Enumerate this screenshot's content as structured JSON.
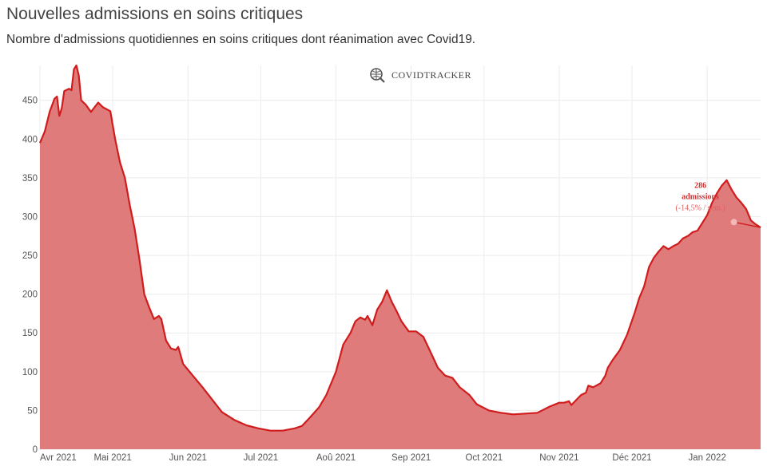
{
  "header": {
    "title": "Nouvelles admissions en soins critiques",
    "subtitle": "Nombre d'admissions quotidiennes en soins critiques dont réanimation avec Covid19."
  },
  "watermark": {
    "text": "COVIDTRACKER",
    "icon": "covidtracker-logo-icon"
  },
  "colors": {
    "line": "#d01c1c",
    "fill": "#e07b7b",
    "grid": "#ececec",
    "marker": "#f2b9b9"
  },
  "chart_data": {
    "type": "area",
    "title": "Nouvelles admissions en soins critiques",
    "subtitle": "Nombre d'admissions quotidiennes en soins critiques dont réanimation avec Covid19.",
    "xlabel": "",
    "ylabel": "",
    "xlim": [
      "2021-04-01",
      "2022-01-23"
    ],
    "ylim": [
      0,
      495
    ],
    "grid": true,
    "legend": "none",
    "y_ticks": [
      0,
      50,
      100,
      150,
      200,
      250,
      300,
      350,
      400,
      450
    ],
    "x_ticks": [
      {
        "date": "2021-04-01",
        "label": "Avr 2021"
      },
      {
        "date": "2021-05-01",
        "label": "Mai 2021"
      },
      {
        "date": "2021-06-01",
        "label": "Jun 2021"
      },
      {
        "date": "2021-07-01",
        "label": "Jul 2021"
      },
      {
        "date": "2021-08-01",
        "label": "Aoû 2021"
      },
      {
        "date": "2021-09-01",
        "label": "Sep 2021"
      },
      {
        "date": "2021-10-01",
        "label": "Oct 2021"
      },
      {
        "date": "2021-11-01",
        "label": "Nov 2021"
      },
      {
        "date": "2021-12-01",
        "label": "Déc 2021"
      },
      {
        "date": "2022-01-01",
        "label": "Jan 2022"
      }
    ],
    "series": [
      {
        "points": [
          [
            "2021-04-01",
            395
          ],
          [
            "2021-04-03",
            410
          ],
          [
            "2021-04-05",
            435
          ],
          [
            "2021-04-07",
            452
          ],
          [
            "2021-04-08",
            455
          ],
          [
            "2021-04-09",
            430
          ],
          [
            "2021-04-10",
            440
          ],
          [
            "2021-04-11",
            462
          ],
          [
            "2021-04-13",
            465
          ],
          [
            "2021-04-14",
            463
          ],
          [
            "2021-04-15",
            490
          ],
          [
            "2021-04-16",
            495
          ],
          [
            "2021-04-17",
            482
          ],
          [
            "2021-04-18",
            450
          ],
          [
            "2021-04-20",
            444
          ],
          [
            "2021-04-22",
            435
          ],
          [
            "2021-04-25",
            447
          ],
          [
            "2021-04-27",
            441
          ],
          [
            "2021-04-30",
            436
          ],
          [
            "2021-05-02",
            400
          ],
          [
            "2021-05-04",
            370
          ],
          [
            "2021-05-06",
            350
          ],
          [
            "2021-05-08",
            315
          ],
          [
            "2021-05-10",
            285
          ],
          [
            "2021-05-12",
            245
          ],
          [
            "2021-05-14",
            200
          ],
          [
            "2021-05-16",
            183
          ],
          [
            "2021-05-18",
            168
          ],
          [
            "2021-05-20",
            172
          ],
          [
            "2021-05-21",
            168
          ],
          [
            "2021-05-23",
            140
          ],
          [
            "2021-05-25",
            130
          ],
          [
            "2021-05-27",
            128
          ],
          [
            "2021-05-28",
            132
          ],
          [
            "2021-05-30",
            110
          ],
          [
            "2021-06-03",
            95
          ],
          [
            "2021-06-07",
            80
          ],
          [
            "2021-06-11",
            64
          ],
          [
            "2021-06-15",
            48
          ],
          [
            "2021-06-20",
            38
          ],
          [
            "2021-06-25",
            31
          ],
          [
            "2021-06-30",
            27
          ],
          [
            "2021-07-05",
            24
          ],
          [
            "2021-07-10",
            24
          ],
          [
            "2021-07-15",
            27
          ],
          [
            "2021-07-18",
            30
          ],
          [
            "2021-07-21",
            40
          ],
          [
            "2021-07-25",
            54
          ],
          [
            "2021-07-28",
            70
          ],
          [
            "2021-08-01",
            100
          ],
          [
            "2021-08-04",
            135
          ],
          [
            "2021-08-07",
            150
          ],
          [
            "2021-08-09",
            165
          ],
          [
            "2021-08-11",
            170
          ],
          [
            "2021-08-13",
            167
          ],
          [
            "2021-08-14",
            172
          ],
          [
            "2021-08-16",
            160
          ],
          [
            "2021-08-18",
            180
          ],
          [
            "2021-08-20",
            190
          ],
          [
            "2021-08-22",
            205
          ],
          [
            "2021-08-24",
            190
          ],
          [
            "2021-08-26",
            178
          ],
          [
            "2021-08-28",
            165
          ],
          [
            "2021-08-31",
            152
          ],
          [
            "2021-09-03",
            152
          ],
          [
            "2021-09-06",
            145
          ],
          [
            "2021-09-09",
            125
          ],
          [
            "2021-09-12",
            105
          ],
          [
            "2021-09-15",
            95
          ],
          [
            "2021-09-18",
            92
          ],
          [
            "2021-09-21",
            80
          ],
          [
            "2021-09-25",
            70
          ],
          [
            "2021-09-28",
            58
          ],
          [
            "2021-10-03",
            50
          ],
          [
            "2021-10-08",
            47
          ],
          [
            "2021-10-13",
            45
          ],
          [
            "2021-10-18",
            46
          ],
          [
            "2021-10-23",
            47
          ],
          [
            "2021-10-28",
            55
          ],
          [
            "2021-11-01",
            60
          ],
          [
            "2021-11-03",
            60
          ],
          [
            "2021-11-05",
            62
          ],
          [
            "2021-11-06",
            57
          ],
          [
            "2021-11-10",
            70
          ],
          [
            "2021-11-12",
            73
          ],
          [
            "2021-11-13",
            82
          ],
          [
            "2021-11-15",
            80
          ],
          [
            "2021-11-18",
            85
          ],
          [
            "2021-11-20",
            95
          ],
          [
            "2021-11-21",
            105
          ],
          [
            "2021-11-23",
            115
          ],
          [
            "2021-11-26",
            128
          ],
          [
            "2021-11-29",
            148
          ],
          [
            "2021-12-02",
            175
          ],
          [
            "2021-12-04",
            195
          ],
          [
            "2021-12-06",
            210
          ],
          [
            "2021-12-08",
            235
          ],
          [
            "2021-12-10",
            247
          ],
          [
            "2021-12-12",
            255
          ],
          [
            "2021-12-14",
            262
          ],
          [
            "2021-12-16",
            258
          ],
          [
            "2021-12-18",
            262
          ],
          [
            "2021-12-20",
            265
          ],
          [
            "2021-12-22",
            272
          ],
          [
            "2021-12-24",
            275
          ],
          [
            "2021-12-26",
            280
          ],
          [
            "2021-12-28",
            282
          ],
          [
            "2021-12-30",
            292
          ],
          [
            "2022-01-01",
            302
          ],
          [
            "2022-01-03",
            318
          ],
          [
            "2022-01-05",
            330
          ],
          [
            "2022-01-07",
            340
          ],
          [
            "2022-01-09",
            347
          ],
          [
            "2022-01-11",
            335
          ],
          [
            "2022-01-13",
            325
          ],
          [
            "2022-01-15",
            318
          ],
          [
            "2022-01-17",
            310
          ],
          [
            "2022-01-19",
            295
          ],
          [
            "2022-01-21",
            290
          ],
          [
            "2022-01-23",
            286
          ]
        ]
      }
    ],
    "annotation": {
      "date": "2022-01-23",
      "value": 286,
      "marker_date": "2022-01-12",
      "marker_value": 293,
      "line1": "286",
      "line2": "admissions",
      "line3": "(-14,5% / sem.)"
    }
  }
}
